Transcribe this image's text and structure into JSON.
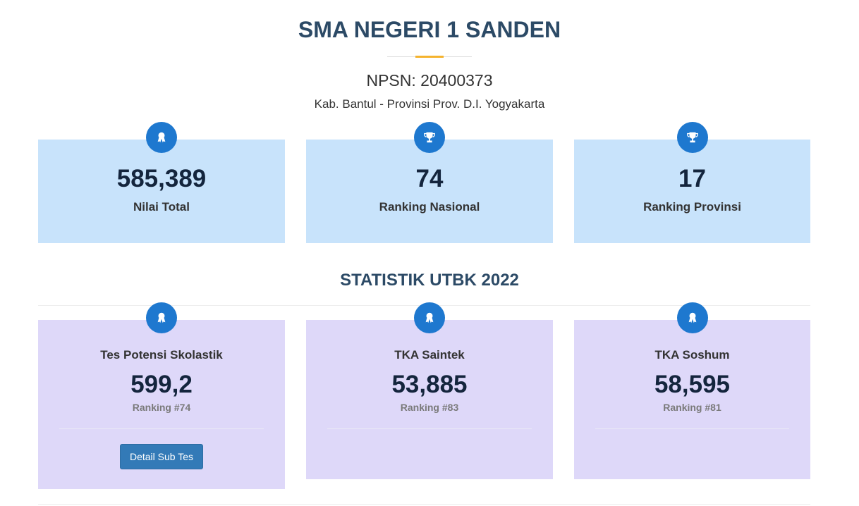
{
  "header": {
    "title": "SMA NEGERI 1 SANDEN",
    "npsn": "NPSN: 20400373",
    "location": "Kab. Bantul - Provinsi Prov. D.I. Yogyakarta"
  },
  "summary": [
    {
      "value": "585,389",
      "label": "Nilai Total",
      "icon": "award-icon"
    },
    {
      "value": "74",
      "label": "Ranking Nasional",
      "icon": "trophy-icon"
    },
    {
      "value": "17",
      "label": "Ranking Provinsi",
      "icon": "trophy-icon"
    }
  ],
  "stats": {
    "title": "STATISTIK UTBK 2022",
    "items": [
      {
        "title": "Tes Potensi Skolastik",
        "value": "599,2",
        "ranking": "Ranking #74",
        "button": "Detail Sub Tes"
      },
      {
        "title": "TKA Saintek",
        "value": "53,885",
        "ranking": "Ranking #83"
      },
      {
        "title": "TKA Soshum",
        "value": "58,595",
        "ranking": "Ranking #81"
      }
    ]
  },
  "colors": {
    "accent": "#1e78cf",
    "gold": "#f5b32e",
    "blue_card": "#c8e3fb",
    "purple_card": "#ded8f9",
    "button": "#337ab7"
  }
}
